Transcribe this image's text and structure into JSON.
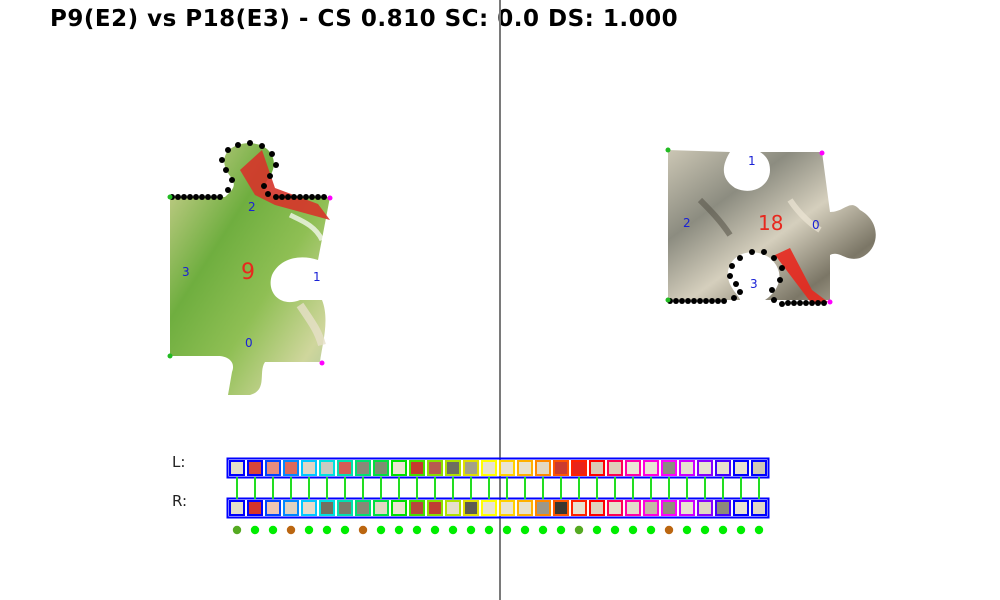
{
  "header": {
    "title": "P9(E2) vs P18(E3) - CS 0.810 SC: 0.0 DS: 1.000"
  },
  "left_piece": {
    "id_label": "9",
    "edge_labels": [
      "0",
      "1",
      "2",
      "3"
    ]
  },
  "right_piece": {
    "id_label": "18",
    "edge_labels": [
      "0",
      "1",
      "2",
      "3"
    ]
  },
  "strip": {
    "left_label": "L:",
    "right_label": "R:",
    "L_colors": [
      "#e4ddc9",
      "#d8453a",
      "#e88c7d",
      "#de6a5c",
      "#e0d6c5",
      "#c9cbc2",
      "#d65c55",
      "#8a8a78",
      "#7d8f72",
      "#ebe5d2",
      "#c53a2d",
      "#b85b4f",
      "#6e6e60",
      "#a4a089",
      "#e8e2cf",
      "#eae4d1",
      "#e9e2cf",
      "#e3d8c4",
      "#cb3b2f",
      "#e8241a",
      "#dbc8b4",
      "#e0cfb9",
      "#ebe6d6",
      "#e8e4d4",
      "#8c8c80",
      "#e6e1d0",
      "#e8e3d2",
      "#e7e1ce",
      "#e7e2d0",
      "#cfc8b6"
    ],
    "R_colors": [
      "#e4ddc9",
      "#d6342a",
      "#efc6b2",
      "#e0d2c0",
      "#e6dccb",
      "#737060",
      "#7b7b6b",
      "#888a76",
      "#e1d8c4",
      "#eae4d1",
      "#b7483c",
      "#c03f33",
      "#e6dfcc",
      "#5d5b51",
      "#e9e3d0",
      "#eae5d3",
      "#e8e2cf",
      "#9b978a",
      "#3b3630",
      "#e8e2cf",
      "#e0d2be",
      "#e8e0cd",
      "#e3dccb",
      "#c4b7a5",
      "#928d7d",
      "#e9e3d1",
      "#e1d8c4",
      "#8c8a7c",
      "#e9e4d2",
      "#e0d8c6"
    ],
    "border_colors": [
      "#0000ff",
      "#0000ff",
      "#0044ff",
      "#0088ff",
      "#00c8ff",
      "#00e0e0",
      "#00e0b0",
      "#00e070",
      "#00e040",
      "#00e000",
      "#44e000",
      "#88e000",
      "#b0e000",
      "#e0e000",
      "#ffff00",
      "#ffd000",
      "#ffb000",
      "#ff8800",
      "#ff5500",
      "#ff2200",
      "#ff0000",
      "#ff0055",
      "#ff00aa",
      "#ff00dd",
      "#ff00ff",
      "#cc00ff",
      "#8800ff",
      "#4400ff",
      "#0000ff",
      "#0000ff"
    ],
    "dot_colors": [
      "#55aa22",
      "#00ee00",
      "#00ee00",
      "#bb6611",
      "#00ee00",
      "#00ee00",
      "#00ee00",
      "#bb6611",
      "#00ee00",
      "#00ee00",
      "#00ee00",
      "#00ee00",
      "#00ee00",
      "#00ee00",
      "#00ee00",
      "#00ee00",
      "#00ee00",
      "#00ee00",
      "#00ee00",
      "#55aa22",
      "#00ee00",
      "#00ee00",
      "#00ee00",
      "#00ee00",
      "#bb6611",
      "#00ee00",
      "#00ee00",
      "#00ee00",
      "#00ee00",
      "#00ee00"
    ]
  }
}
